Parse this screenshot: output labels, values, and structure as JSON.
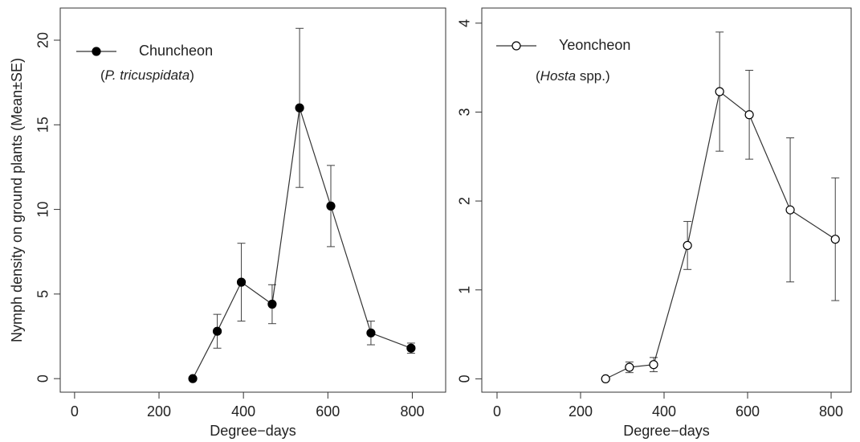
{
  "chart_data": [
    {
      "type": "line",
      "y_label": "Nymph density on ground plants (Mean±SE)",
      "x_label": "Degree−days",
      "annotation": [
        "(",
        "P. tricuspidata",
        ")"
      ],
      "x": [
        280,
        338,
        395,
        468,
        533,
        607,
        702,
        797
      ],
      "series": [
        {
          "name": "Chuncheon",
          "color": "#000000",
          "marker": "filled",
          "values": [
            0,
            2.8,
            5.7,
            4.4,
            16.0,
            10.2,
            2.7,
            1.8
          ],
          "errors": [
            0,
            1.0,
            2.3,
            1.15,
            4.7,
            2.4,
            0.7,
            0.3
          ]
        }
      ],
      "xlim": [
        -34,
        879
      ],
      "ylim": [
        -0.8,
        21.9
      ],
      "xticks": [
        0,
        200,
        400,
        600,
        800
      ],
      "yticks": [
        0,
        5,
        10,
        15,
        20
      ],
      "grid": false
    },
    {
      "type": "line",
      "x_label": "Degree−days",
      "annotation": [
        "(",
        "Hosta",
        " spp.)"
      ],
      "x": [
        260,
        317,
        375,
        456,
        533,
        604,
        702,
        810
      ],
      "series": [
        {
          "name": "Yeoncheon",
          "color": "#000000",
          "marker": "open",
          "values": [
            0,
            0.13,
            0.16,
            1.5,
            3.23,
            2.97,
            1.9,
            1.57
          ],
          "errors": [
            0,
            0.06,
            0.08,
            0.27,
            0.67,
            0.5,
            0.81,
            0.69
          ]
        }
      ],
      "xlim": [
        -36.5,
        848
      ],
      "ylim": [
        -0.15,
        4.17
      ],
      "xticks": [
        0,
        200,
        400,
        600,
        800
      ],
      "yticks": [
        0,
        1,
        2,
        3,
        4
      ],
      "grid": false
    }
  ]
}
